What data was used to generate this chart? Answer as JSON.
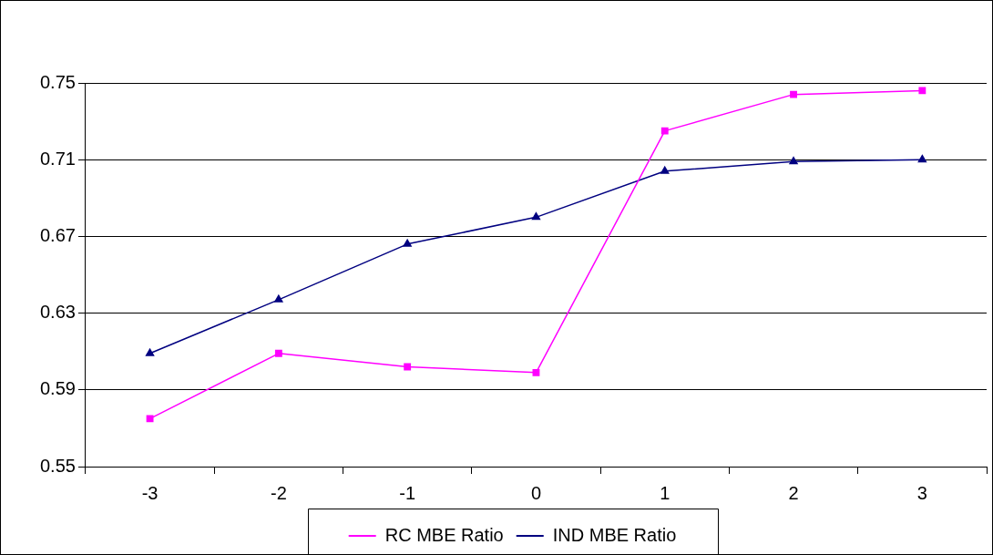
{
  "chart_data": {
    "type": "line",
    "categories": [
      "-3",
      "-2",
      "-1",
      "0",
      "1",
      "2",
      "3"
    ],
    "series": [
      {
        "name": "RC MBE Ratio",
        "color": "#ff00ff",
        "marker": "square",
        "values": [
          0.575,
          0.609,
          0.602,
          0.599,
          0.725,
          0.744,
          0.746
        ]
      },
      {
        "name": "IND MBE Ratio",
        "color": "#000080",
        "marker": "triangle",
        "values": [
          0.609,
          0.637,
          0.666,
          0.68,
          0.704,
          0.709,
          0.71
        ]
      }
    ],
    "ylim": [
      0.55,
      0.75
    ],
    "yticks": [
      0.55,
      0.59,
      0.63,
      0.67,
      0.71,
      0.75
    ],
    "grid": "y",
    "legend": "bottom",
    "line_style": "solid"
  }
}
